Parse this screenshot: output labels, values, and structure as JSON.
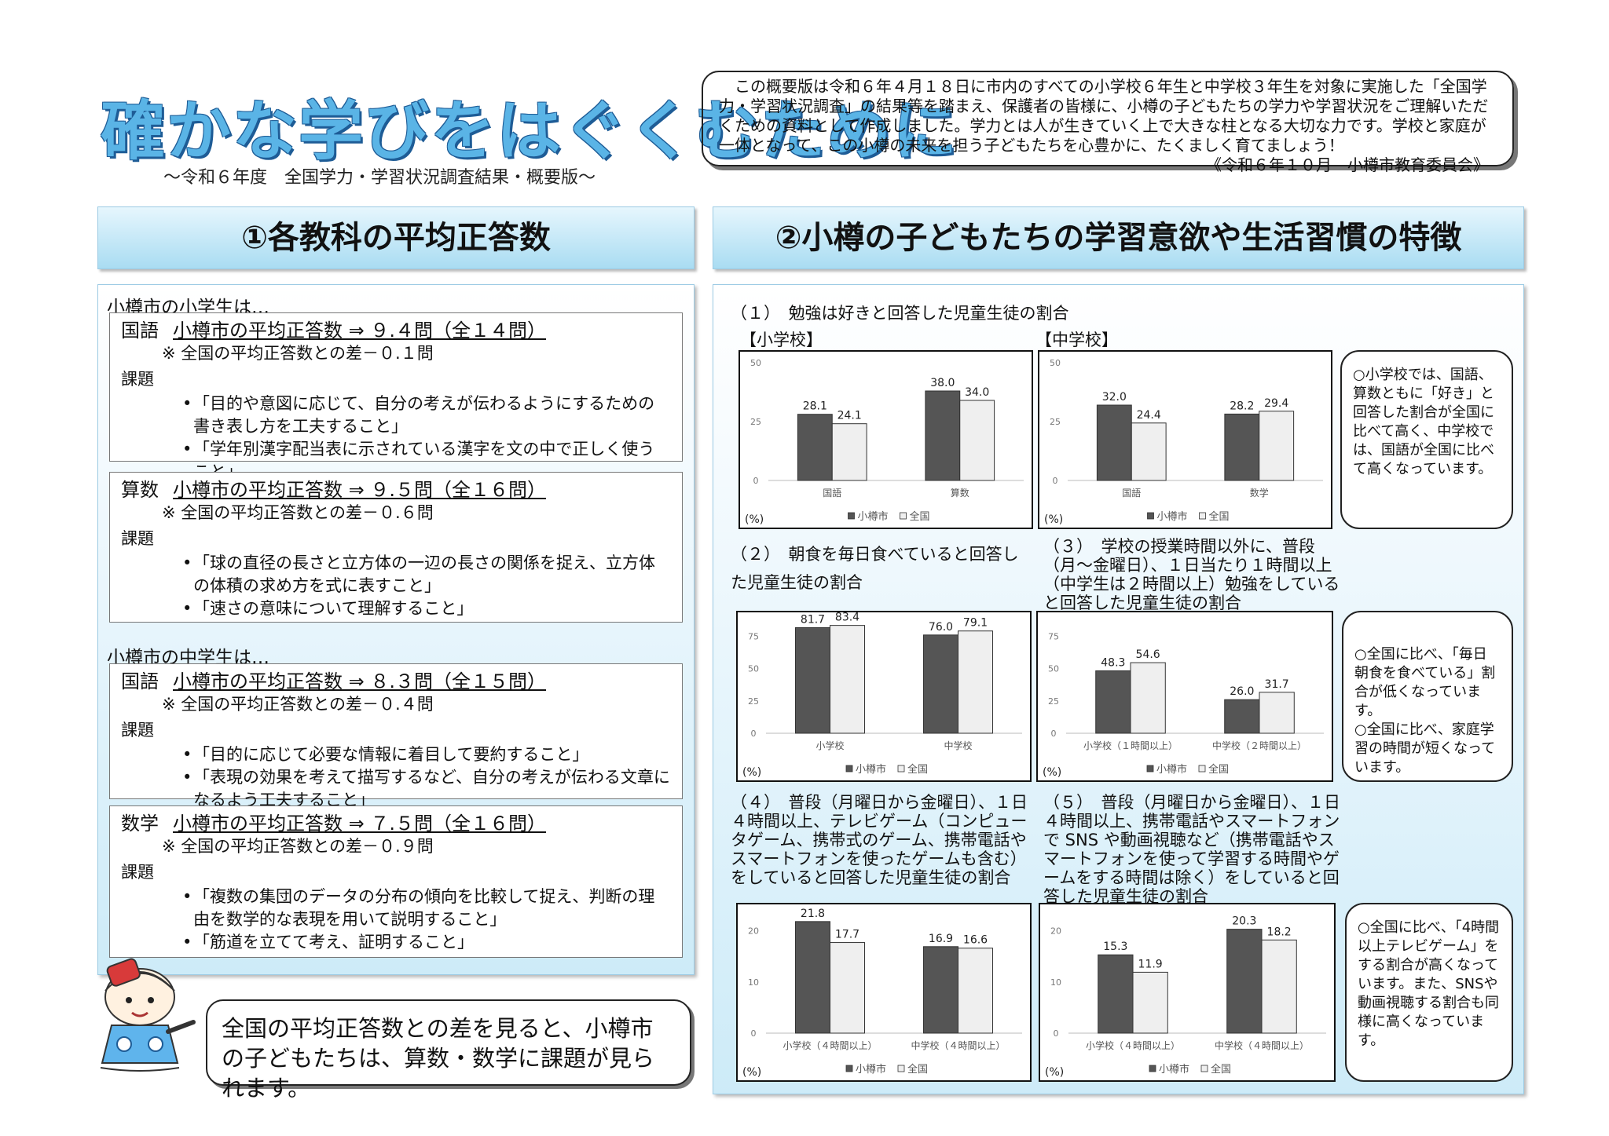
{
  "header": {
    "title": "確かな学びをはぐくむために",
    "subtitle": "〜令和６年度　全国学力・学習状況調査結果・概要版〜",
    "intro": "この概要版は令和６年４月１８日に市内のすべての小学校６年生と中学校３年生を対象に実施した「全国学力・学習状況調査」の結果等を踏まえ、保護者の皆様に、小樽の子どもたちの学力や学習状況をご理解いただくための資料として作成しました。学力とは人が生きていく上で大きな柱となる大切な力です。学校と家庭が一体となって、この小樽の未来を担う子どもたちを心豊かに、たくましく育てましょう！",
    "signature": "《令和６年１０月　小樽市教育委員会》"
  },
  "section1": {
    "title": "①各教科の平均正答数",
    "elementary_heading": "小樽市の小学生は…",
    "junior_heading": "小樽市の中学生は…",
    "issue_label": "課題",
    "cards": [
      {
        "subject": "国語",
        "score": "小樽市の平均正答数 ⇒ ９.４問（全１４問）",
        "diff": "※ 全国の平均正答数との差－０.１問",
        "items": [
          "「目的や意図に応じて、自分の考えが伝わるようにするための書き表し方を工夫すること」",
          "「学年別漢字配当表に示されている漢字を文の中で正しく使うこと」"
        ]
      },
      {
        "subject": "算数",
        "score": "小樽市の平均正答数 ⇒ ９.５問（全１６問）",
        "diff": "※ 全国の平均正答数との差－０.６問",
        "items": [
          "「球の直径の長さと立方体の一辺の長さの関係を捉え、立方体の体積の求め方を式に表すこと」",
          "「速さの意味について理解すること」"
        ]
      },
      {
        "subject": "国語",
        "score": "小樽市の平均正答数 ⇒ ８.３問（全１５問）",
        "diff": "※ 全国の平均正答数との差－０.４問",
        "items": [
          "「目的に応じて必要な情報に着目して要約すること」",
          "「表現の効果を考えて描写するなど、自分の考えが伝わる文章になるよう工夫すること」"
        ]
      },
      {
        "subject": "数学",
        "score": "小樽市の平均正答数 ⇒ ７.５問（全１６問）",
        "diff": "※ 全国の平均正答数との差－０.９問",
        "items": [
          "「複数の集団のデータの分布の傾向を比較して捉え、判断の理由を数学的な表現を用いて説明すること」",
          "「筋道を立てて考え、証明すること」"
        ]
      }
    ],
    "speech": "全国の平均正答数との差を見ると、小樽市の子どもたちは、算数・数学に課題が見られます。"
  },
  "section2": {
    "title": "②小樽の子どもたちの学習意欲や生活習慣の特徴",
    "q1": "（１）　勉強は好きと回答した児童生徒の割合",
    "q1_elem_label": "【小学校】",
    "q1_junior_label": "【中学校】",
    "q2": "（２）　朝食を毎日食べていると回答した児童生徒の割合",
    "q3": "（３）　学校の授業時間以外に、普段（月〜金曜日）、１日当たり１時間以上（中学生は２時間以上）勉強をしていると回答した児童生徒の割合",
    "q4": "（４）　普段（月曜日から金曜日）、１日４時間以上、テレビゲーム（コンピュータゲーム、携帯式のゲーム、携帯電話やスマートフォンを使ったゲームも含む）をしていると回答した児童生徒の割合",
    "q5": "（５）　普段（月曜日から金曜日）、１日４時間以上、携帯電話やスマートフォンで SNS や動画視聴など（携帯電話やスマートフォンを使って学習する時間やゲームをする時間は除く）をしていると回答した児童生徒の割合",
    "note1": "○小学校では、国語、算数ともに「好き」と回答した割合が全国に比べて高く、中学校では、国語が全国に比べて高くなっています。",
    "note2": "○全国に比べ、「毎日朝食を食べている」割合が低くなっています。\n○全国に比べ、家庭学習の時間が短くなっています。",
    "note3": "○全国に比べ、「4時間以上テレビゲーム」をする割合が高くなっています。また、SNSや動画視聴する割合も同様に高くなっています。"
  },
  "colors": {
    "otaru": "#555555",
    "national": "#efefef",
    "title_fill": "#5ab4e6",
    "title_outline": "#1e5c96"
  },
  "chart_data": [
    {
      "type": "bar",
      "categories": [
        "国語",
        "算数"
      ],
      "series": [
        {
          "name": "小樽市",
          "values": [
            28.1,
            38.0
          ]
        },
        {
          "name": "全国",
          "values": [
            24.1,
            34.0
          ]
        }
      ],
      "ylim": [
        0,
        50
      ],
      "yticks": [
        "0",
        "25",
        "50"
      ],
      "unit": "(%)",
      "labels": [
        [
          "28.1",
          "38.0"
        ],
        [
          "24.1",
          "34.0"
        ]
      ]
    },
    {
      "type": "bar",
      "categories": [
        "国語",
        "数学"
      ],
      "series": [
        {
          "name": "小樽市",
          "values": [
            32.0,
            28.2
          ]
        },
        {
          "name": "全国",
          "values": [
            24.4,
            29.4
          ]
        }
      ],
      "ylim": [
        0,
        50
      ],
      "yticks": [
        "0",
        "25",
        "50"
      ],
      "unit": "(%)",
      "labels": [
        [
          "32.0",
          "28.2"
        ],
        [
          "24.4",
          "29.4"
        ]
      ]
    },
    {
      "type": "bar",
      "categories": [
        "小学校",
        "中学校"
      ],
      "series": [
        {
          "name": "小樽市",
          "values": [
            81.7,
            76.0
          ]
        },
        {
          "name": "全国",
          "values": [
            83.4,
            79.1
          ]
        }
      ],
      "ylim": [
        0,
        85
      ],
      "yticks": [
        "0",
        "25",
        "50",
        "75"
      ],
      "unit": "(%)",
      "labels": [
        [
          "81.7",
          "76.0"
        ],
        [
          "83.4",
          "79.1"
        ]
      ]
    },
    {
      "type": "bar",
      "categories": [
        "小学校（１時間以上）",
        "中学校（２時間以上）"
      ],
      "series": [
        {
          "name": "小樽市",
          "values": [
            48.3,
            26.0
          ]
        },
        {
          "name": "全国",
          "values": [
            54.6,
            31.7
          ]
        }
      ],
      "ylim": [
        0,
        85
      ],
      "yticks": [
        "0",
        "25",
        "50",
        "75"
      ],
      "unit": "(%)",
      "labels": [
        [
          "48.3",
          "26.0"
        ],
        [
          "54.6",
          "31.7"
        ]
      ]
    },
    {
      "type": "bar",
      "categories": [
        "小学校（４時間以上）",
        "中学校（４時間以上）"
      ],
      "series": [
        {
          "name": "小樽市",
          "values": [
            21.8,
            16.9
          ]
        },
        {
          "name": "全国",
          "values": [
            17.7,
            16.6
          ]
        }
      ],
      "ylim": [
        0,
        23
      ],
      "yticks": [
        "0",
        "10",
        "20"
      ],
      "unit": "(%)",
      "labels": [
        [
          "21.8",
          "16.9"
        ],
        [
          "17.7",
          "16.6"
        ]
      ]
    },
    {
      "type": "bar",
      "categories": [
        "小学校（４時間以上）",
        "中学校（４時間以上）"
      ],
      "series": [
        {
          "name": "小樽市",
          "values": [
            15.3,
            20.3
          ]
        },
        {
          "name": "全国",
          "values": [
            11.9,
            18.2
          ]
        }
      ],
      "ylim": [
        0,
        23
      ],
      "yticks": [
        "0",
        "10",
        "20"
      ],
      "unit": "(%)",
      "labels": [
        [
          "15.3",
          "20.3"
        ],
        [
          "11.9",
          "18.2"
        ]
      ]
    }
  ]
}
